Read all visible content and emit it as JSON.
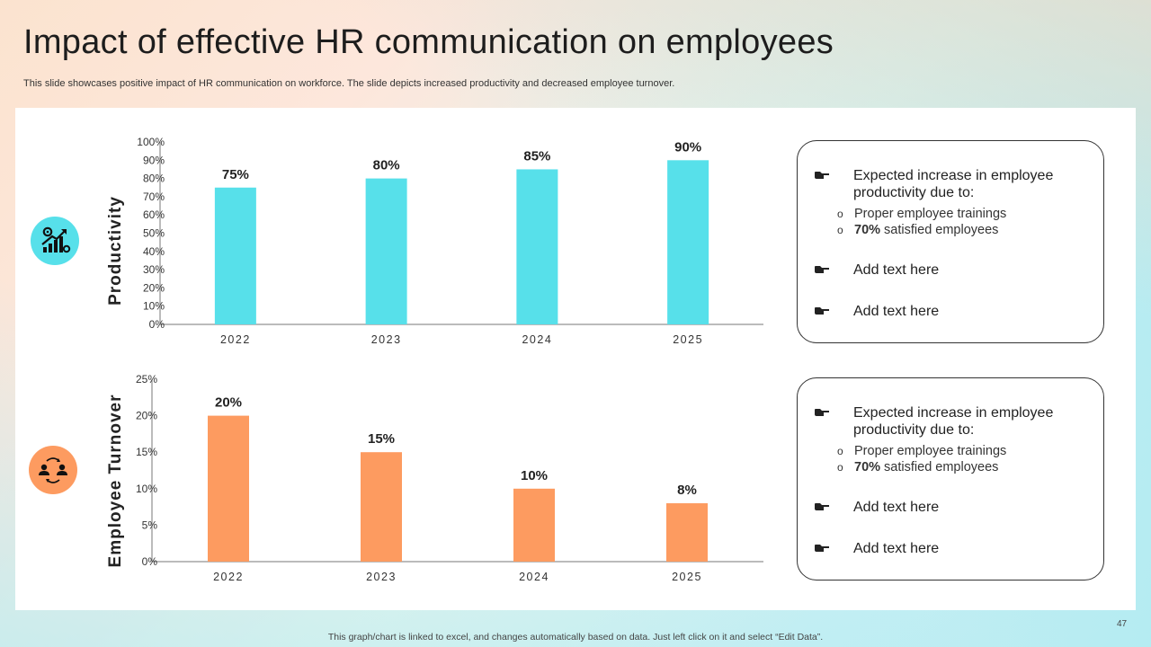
{
  "slide": {
    "title": "Impact of effective HR communication on employees",
    "subtitle": "This slide showcases positive impact of HR communication on workforce. The slide depicts increased productivity and decreased employee turnover.",
    "footer_note": "This graph/chart is linked to excel,  and changes automatically based on data. Just left click on it and select “Edit Data”.",
    "page_number": "47"
  },
  "colors": {
    "productivity": "#57e0ea",
    "turnover": "#fd9b60"
  },
  "icons": {
    "productivity": "growth-gears-icon",
    "turnover": "employee-exchange-icon"
  },
  "chart_data": [
    {
      "type": "bar",
      "title": "",
      "ylabel": "Productivity",
      "xlabel": "",
      "categories": [
        "2022",
        "2023",
        "2024",
        "2025"
      ],
      "values": [
        75,
        80,
        85,
        90
      ],
      "value_labels": [
        "75%",
        "80%",
        "85%",
        "90%"
      ],
      "ylim": [
        0,
        100
      ],
      "yticks": [
        0,
        10,
        20,
        30,
        40,
        50,
        60,
        70,
        80,
        90,
        100
      ],
      "ytick_labels": [
        "0%",
        "10%",
        "20%",
        "30%",
        "40%",
        "50%",
        "60%",
        "70%",
        "80%",
        "90%",
        "100%"
      ],
      "grid": false
    },
    {
      "type": "bar",
      "title": "",
      "ylabel": "Employee Turnover",
      "xlabel": "",
      "categories": [
        "2022",
        "2023",
        "2024",
        "2025"
      ],
      "values": [
        20,
        15,
        10,
        8
      ],
      "value_labels": [
        "20%",
        "15%",
        "10%",
        "8%"
      ],
      "ylim": [
        0,
        25
      ],
      "yticks": [
        0,
        5,
        10,
        15,
        20,
        25
      ],
      "ytick_labels": [
        "0%",
        "5%",
        "10%",
        "15%",
        "20%",
        "25%"
      ],
      "grid": false
    }
  ],
  "textboxes": [
    {
      "main": "Expected increase in employee productivity due to:",
      "subs": [
        {
          "bullet": "o",
          "bold": "",
          "text": "Proper employee trainings"
        },
        {
          "bullet": "o",
          "bold": "70%",
          "text": " satisfied employees"
        }
      ],
      "items": [
        "Add text here",
        "Add text here"
      ]
    },
    {
      "main": "Expected increase in employee productivity due to:",
      "subs": [
        {
          "bullet": "o",
          "bold": "",
          "text": "Proper employee trainings"
        },
        {
          "bullet": "o",
          "bold": "70%",
          "text": " satisfied employees"
        }
      ],
      "items": [
        "Add text here",
        "Add text here"
      ]
    }
  ]
}
